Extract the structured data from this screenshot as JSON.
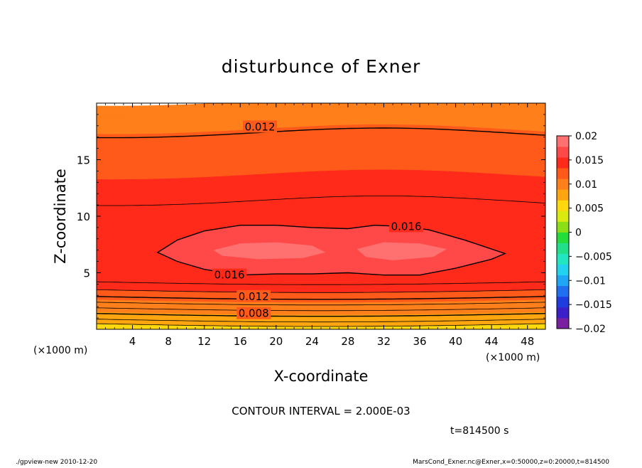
{
  "chart_data": {
    "type": "heatmap",
    "title": "disturbunce of Exner",
    "xlabel": "X-coordinate",
    "ylabel": "Z-coordinate",
    "x_unit": "(×1000 m)",
    "y_unit": "(×1000 m)",
    "xlim": [
      0,
      50
    ],
    "ylim": [
      0,
      20
    ],
    "x_ticks": [
      4,
      8,
      12,
      16,
      20,
      24,
      28,
      32,
      36,
      40,
      44,
      48
    ],
    "y_ticks": [
      5,
      10,
      15
    ],
    "contour_interval_text": "CONTOUR INTERVAL = 2.000E-03",
    "time_text": "t=814500 s",
    "contour_labels": [
      {
        "text": "0.012",
        "x": 18.2,
        "z": 17.9
      },
      {
        "text": "0.016",
        "x": 34.5,
        "z": 9.1
      },
      {
        "text": "0.016",
        "x": 14.8,
        "z": 4.8
      },
      {
        "text": "0.012",
        "x": 17.5,
        "z": 2.9
      },
      {
        "text": "0.008",
        "x": 17.5,
        "z": 1.4
      }
    ],
    "field_bands": [
      {
        "z": [
          19.0,
          20.0
        ],
        "value": 0.0105
      },
      {
        "z": [
          17.5,
          19.0
        ],
        "value": 0.011
      },
      {
        "z": [
          13.5,
          17.5
        ],
        "value": 0.013
      },
      {
        "z": [
          11.2,
          13.5
        ],
        "value": 0.0145
      },
      {
        "z": [
          4.2,
          11.2
        ],
        "value": 0.0155
      },
      {
        "z": [
          3.9,
          4.2
        ],
        "value": 0.0145
      },
      {
        "z": [
          3.5,
          3.9
        ],
        "value": 0.0135
      },
      {
        "z": [
          3.1,
          3.5
        ],
        "value": 0.0125
      },
      {
        "z": [
          2.6,
          3.1
        ],
        "value": 0.0115
      },
      {
        "z": [
          2.0,
          2.6
        ],
        "value": 0.0105
      },
      {
        "z": [
          1.5,
          2.0
        ],
        "value": 0.0095
      },
      {
        "z": [
          1.0,
          1.5
        ],
        "value": 0.0085
      },
      {
        "z": [
          0.5,
          1.0
        ],
        "value": 0.0075
      },
      {
        "z": [
          0.0,
          0.5
        ],
        "value": 0.0065
      }
    ],
    "core_region_value": 0.0172,
    "max_region_value": 0.0185,
    "colorbar": {
      "min": -0.02,
      "max": 0.02,
      "tick_labels": [
        "0.02",
        "0.015",
        "0.01",
        "0.005",
        "0",
        "−0.005",
        "−0.01",
        "−0.015",
        "−0.02"
      ],
      "colors": [
        "#7a1fa2",
        "#3b1fc9",
        "#1f3ddf",
        "#1f6ff0",
        "#1fa6f5",
        "#22d3f0",
        "#22e6bf",
        "#22e08a",
        "#24dc3a",
        "#8bdf17",
        "#d9ea11",
        "#ffd80e",
        "#ffa50f",
        "#ff7f1a",
        "#ff5a1a",
        "#ff2a1a",
        "#ff4848",
        "#ff7070"
      ]
    }
  },
  "footer": {
    "left": "./gpview-new   2010-12-20",
    "right": "MarsCond_Exner.nc@Exner,x=0:50000,z=0:20000,t=814500"
  }
}
